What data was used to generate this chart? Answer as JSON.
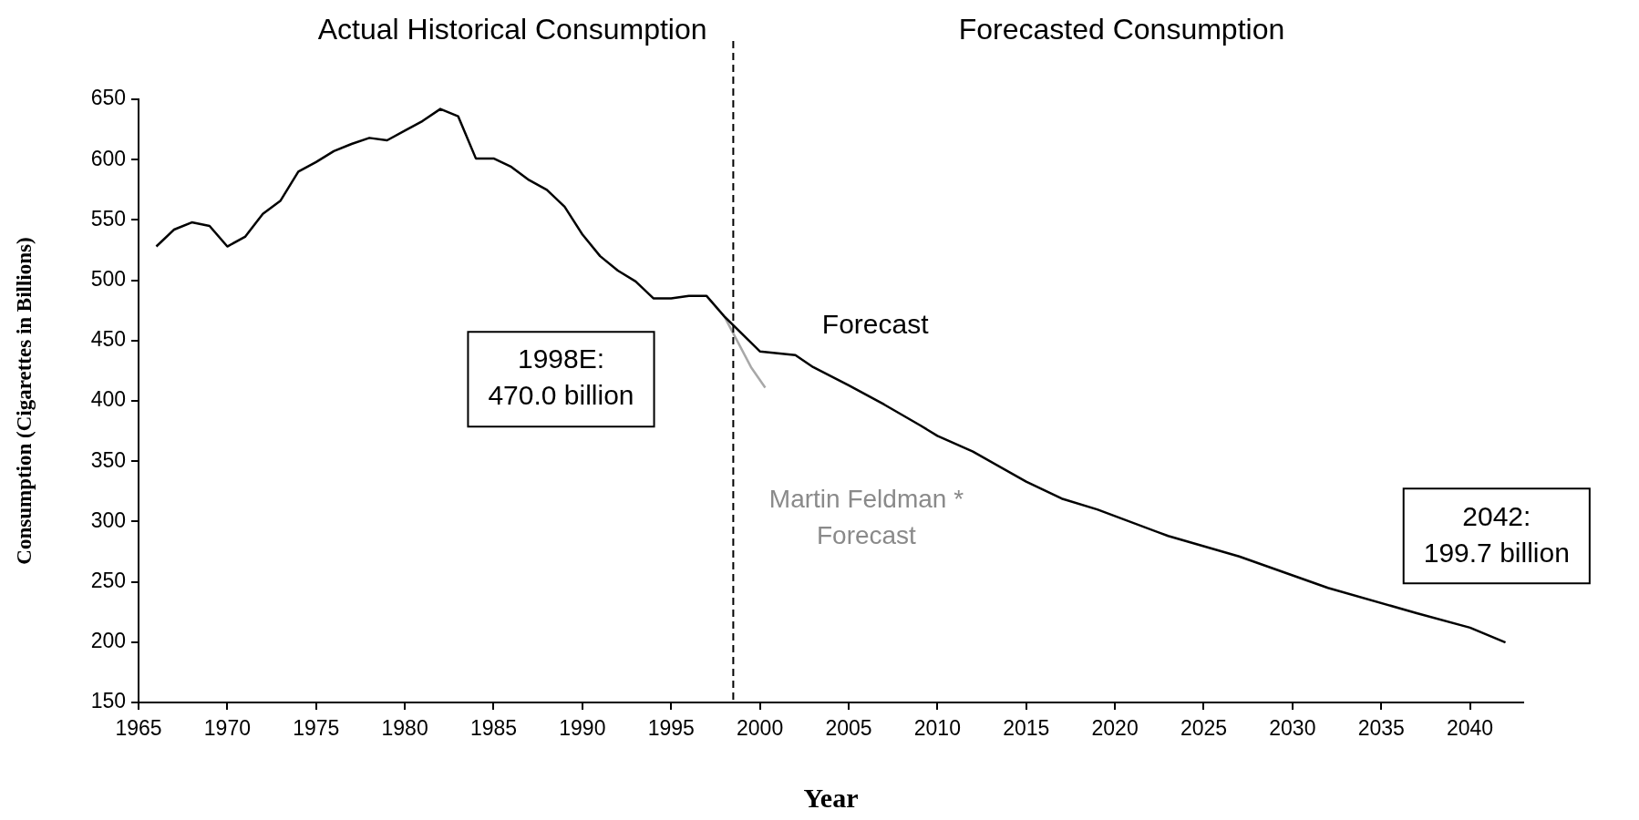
{
  "chart_data": {
    "type": "line",
    "xlabel": "Year",
    "ylabel": "Consumption (Cigarettes in Billions)",
    "xlim": [
      1965,
      2043
    ],
    "xticks": [
      1965,
      1970,
      1975,
      1980,
      1985,
      1990,
      1995,
      2000,
      2005,
      2010,
      2015,
      2020,
      2025,
      2030,
      2035,
      2040
    ],
    "ylim": [
      150,
      650
    ],
    "yticks": [
      150,
      200,
      250,
      300,
      350,
      400,
      450,
      500,
      550,
      600,
      650
    ],
    "grid": false,
    "legend": false,
    "marker": "none",
    "line_style": "solid",
    "series": [
      {
        "color": "#000000",
        "x": [
          1966,
          1967,
          1968,
          1969,
          1970,
          1971,
          1972,
          1973,
          1974,
          1975,
          1976,
          1977,
          1978,
          1979,
          1980,
          1981,
          1982,
          1983,
          1984,
          1985,
          1986,
          1987,
          1988,
          1989,
          1990,
          1991,
          1992,
          1993,
          1994,
          1995,
          1996,
          1997,
          1998,
          2000,
          2002,
          2003,
          2005,
          2007,
          2009,
          2010,
          2012,
          2015,
          2017,
          2019,
          2023,
          2027,
          2032,
          2037,
          2040,
          2042
        ],
        "values": [
          528,
          542,
          548,
          545,
          528,
          536,
          555,
          566,
          590,
          598,
          607,
          613,
          618,
          616,
          624,
          632,
          642,
          636,
          601,
          601,
          594,
          583,
          575,
          561,
          538,
          520,
          508,
          499,
          485,
          485,
          487,
          487,
          470,
          441,
          438,
          428,
          413,
          397,
          380,
          371,
          358,
          333,
          319,
          310,
          288,
          271,
          245,
          224,
          212,
          199.7
        ]
      },
      {
        "color": "#a8a8a8",
        "x": [
          1998,
          1999.5,
          2000.3
        ],
        "values": [
          470,
          428,
          411
        ]
      }
    ],
    "ref_lines": [
      {
        "axis": "x",
        "value": 1998.5,
        "color": "#000000",
        "line_style": "dashed"
      }
    ],
    "annotations": [
      "Actual Historical Consumption",
      "Forecasted Consumption",
      "Forecast",
      "Martin Feldman *\nForecast",
      "1998E:\n470.0 billion",
      "2042:\n199.7 billion"
    ]
  }
}
